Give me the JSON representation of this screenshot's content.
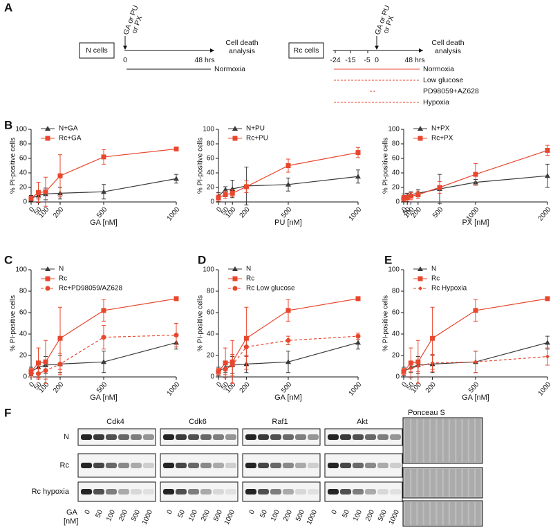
{
  "panel_labels": [
    "A",
    "B",
    "C",
    "D",
    "E",
    "F"
  ],
  "schematic": {
    "left": {
      "cells": "N cells",
      "treatment": [
        "GA or PU",
        "or PX"
      ],
      "start": "0",
      "end": "48 hrs",
      "readout": [
        "Cell death",
        "analysis"
      ],
      "condition": "Normoxia"
    },
    "right": {
      "cells": "Rc cells",
      "treatment": [
        "GA or PU",
        "or PX"
      ],
      "timepoints": [
        "-24",
        "-15",
        "-5",
        "0"
      ],
      "end": "48 hrs",
      "readout": [
        "Cell death",
        "analysis"
      ],
      "conditions": [
        "Normoxia",
        "Low glucose",
        "PD98059+AZ628",
        "Hypoxia"
      ]
    }
  },
  "chart_data": [
    {
      "type": "line",
      "x_label": "GA [nM]",
      "y_label": "% PI-positive cells",
      "x": [
        0,
        50,
        100,
        200,
        500,
        1000
      ],
      "xlim": [
        0,
        1000
      ],
      "xticks": [
        0,
        50,
        100,
        200,
        500,
        1000
      ],
      "ylim": [
        0,
        100
      ],
      "yticks": [
        0,
        20,
        40,
        60,
        80,
        100
      ],
      "series": [
        {
          "name": "N+GA",
          "color": "#3a3a3a",
          "marker": "triangle",
          "dashed": false,
          "values": [
            5,
            9,
            11,
            12,
            14,
            32
          ],
          "errors": [
            4,
            5,
            8,
            8,
            10,
            6
          ]
        },
        {
          "name": "Rc+GA",
          "color": "#e8472d",
          "marker": "square",
          "dashed": false,
          "values": [
            5,
            13,
            14,
            36,
            62,
            73
          ],
          "errors": [
            3,
            14,
            20,
            29,
            10,
            1.5
          ]
        }
      ]
    },
    {
      "type": "line",
      "x_label": "PU [nM]",
      "y_label": "% PI-positive cells",
      "x": [
        0,
        50,
        100,
        200,
        500,
        1000
      ],
      "xlim": [
        0,
        1000
      ],
      "xticks": [
        0,
        50,
        100,
        200,
        500,
        1000
      ],
      "ylim": [
        0,
        100
      ],
      "yticks": [
        0,
        20,
        40,
        60,
        80,
        100
      ],
      "series": [
        {
          "name": "N+PU",
          "color": "#3a3a3a",
          "marker": "triangle",
          "dashed": false,
          "values": [
            8,
            17,
            18,
            22,
            24,
            35
          ],
          "errors": [
            5,
            4,
            12,
            26,
            9,
            9
          ]
        },
        {
          "name": "Rc+PU",
          "color": "#e8472d",
          "marker": "square",
          "dashed": false,
          "values": [
            6,
            10,
            12,
            21,
            50,
            68
          ],
          "errors": [
            5,
            5,
            5,
            8,
            9,
            7
          ]
        }
      ]
    },
    {
      "type": "line",
      "x_label": "PX [nM]",
      "y_label": "% PI-positive cells",
      "x": [
        0,
        50,
        100,
        200,
        500,
        1000,
        2000
      ],
      "xlim": [
        0,
        2000
      ],
      "xticks": [
        0,
        50,
        100,
        200,
        500,
        1000,
        2000
      ],
      "ylim": [
        0,
        100
      ],
      "yticks": [
        0,
        20,
        40,
        60,
        80,
        100
      ],
      "series": [
        {
          "name": "N+PX",
          "color": "#3a3a3a",
          "marker": "triangle",
          "dashed": false,
          "values": [
            7,
            8,
            10,
            12,
            18,
            27,
            36
          ],
          "errors": [
            4,
            4,
            4,
            5,
            20,
            4,
            16
          ]
        },
        {
          "name": "Rc+PX",
          "color": "#e8472d",
          "marker": "square",
          "dashed": false,
          "values": [
            5,
            6,
            8,
            10,
            20,
            38,
            71
          ],
          "errors": [
            4,
            5,
            5,
            5,
            8,
            15,
            7
          ]
        }
      ]
    },
    {
      "type": "line",
      "x_label": "GA [nM]",
      "y_label": "% PI-positive cells",
      "x": [
        0,
        50,
        100,
        200,
        500,
        1000
      ],
      "xlim": [
        0,
        1000
      ],
      "xticks": [
        0,
        50,
        100,
        200,
        500,
        1000
      ],
      "ylim": [
        0,
        100
      ],
      "yticks": [
        0,
        20,
        40,
        60,
        80,
        100
      ],
      "series": [
        {
          "name": "N",
          "color": "#3a3a3a",
          "marker": "triangle",
          "dashed": false,
          "values": [
            5,
            9,
            11,
            12,
            14,
            32
          ],
          "errors": [
            4,
            5,
            8,
            8,
            10,
            6
          ]
        },
        {
          "name": "Rc",
          "color": "#e8472d",
          "marker": "square",
          "dashed": false,
          "values": [
            5,
            13,
            14,
            36,
            62,
            73
          ],
          "errors": [
            3,
            14,
            20,
            29,
            10,
            1.5
          ]
        },
        {
          "name": "Rc+PD98059/AZ628",
          "color": "#e8472d",
          "marker": "circle",
          "dashed": true,
          "values": [
            3,
            3,
            6,
            12,
            37,
            39
          ],
          "errors": [
            3,
            5,
            8,
            10,
            11,
            11
          ]
        }
      ]
    },
    {
      "type": "line",
      "x_label": "GA [nM]",
      "y_label": "% PI-positive cells",
      "x": [
        0,
        50,
        100,
        200,
        500,
        1000
      ],
      "xlim": [
        0,
        1000
      ],
      "xticks": [
        0,
        50,
        100,
        200,
        500,
        1000
      ],
      "ylim": [
        0,
        100
      ],
      "yticks": [
        0,
        20,
        40,
        60,
        80,
        100
      ],
      "series": [
        {
          "name": "N",
          "color": "#3a3a3a",
          "marker": "triangle",
          "dashed": false,
          "values": [
            5,
            9,
            11,
            12,
            14,
            32
          ],
          "errors": [
            4,
            5,
            8,
            8,
            10,
            6
          ]
        },
        {
          "name": "Rc",
          "color": "#e8472d",
          "marker": "square",
          "dashed": false,
          "values": [
            5,
            13,
            14,
            36,
            62,
            73
          ],
          "errors": [
            3,
            14,
            20,
            29,
            10,
            1.5
          ]
        },
        {
          "name": "Rc Low glucose",
          "color": "#e8472d",
          "marker": "circle",
          "dashed": true,
          "values": [
            5,
            7,
            11,
            28,
            34,
            38
          ],
          "errors": [
            3,
            5,
            10,
            9,
            4,
            3
          ]
        }
      ]
    },
    {
      "type": "line",
      "x_label": "GA [nM]",
      "y_label": "% PI-positive cells",
      "x": [
        0,
        50,
        100,
        200,
        500,
        1000
      ],
      "xlim": [
        0,
        1000
      ],
      "xticks": [
        0,
        50,
        100,
        200,
        500,
        1000
      ],
      "ylim": [
        0,
        100
      ],
      "yticks": [
        0,
        20,
        40,
        60,
        80,
        100
      ],
      "series": [
        {
          "name": "N",
          "color": "#3a3a3a",
          "marker": "triangle",
          "dashed": false,
          "values": [
            5,
            9,
            11,
            12,
            14,
            32
          ],
          "errors": [
            4,
            5,
            8,
            8,
            10,
            6
          ]
        },
        {
          "name": "Rc",
          "color": "#e8472d",
          "marker": "square",
          "dashed": false,
          "values": [
            5,
            13,
            14,
            36,
            62,
            73
          ],
          "errors": [
            3,
            14,
            20,
            29,
            10,
            1.5
          ]
        },
        {
          "name": "Rc Hypoxia",
          "color": "#e8472d",
          "marker": "diamond",
          "dashed": true,
          "values": [
            5,
            8,
            10,
            13,
            14,
            19
          ],
          "errors": [
            3,
            3,
            5,
            8,
            10,
            8
          ]
        }
      ]
    }
  ],
  "western_blot": {
    "proteins": [
      "Cdk4",
      "Cdk6",
      "Raf1",
      "Akt"
    ],
    "reference": "Ponceau S",
    "rows": [
      "N",
      "Rc",
      "Rc hypoxia"
    ],
    "dose_label": [
      "GA",
      "[nM]"
    ],
    "lanes": [
      "0",
      "50",
      "100",
      "200",
      "500",
      "1000"
    ]
  }
}
